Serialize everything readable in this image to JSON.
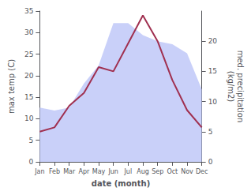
{
  "chart_data": {
    "type": "line",
    "categories": [
      "Jan",
      "Feb",
      "Mar",
      "Apr",
      "May",
      "Jun",
      "Jul",
      "Aug",
      "Sep",
      "Oct",
      "Nov",
      "Dec"
    ],
    "xlabel": "date (month)",
    "ylabel": "max temp (C)",
    "y2label": "med. precipitation\n(kg/m2)",
    "ylim": [
      0,
      35
    ],
    "yticks": [
      0,
      5,
      10,
      15,
      20,
      25,
      30,
      35
    ],
    "y2lim": [
      0,
      25
    ],
    "y2ticks": [
      0,
      5,
      10,
      15,
      20
    ],
    "grid": false,
    "series": [
      {
        "type": "area",
        "axis": "y2",
        "color": "#c0c8f8",
        "values": [
          9,
          8.5,
          9,
          13,
          16,
          23,
          23,
          21,
          20,
          19.5,
          18,
          12
        ]
      },
      {
        "type": "line",
        "color": "#a03050",
        "values": [
          7,
          8,
          13,
          16,
          22,
          21,
          27.5,
          34,
          28,
          19,
          12,
          8
        ]
      }
    ]
  }
}
